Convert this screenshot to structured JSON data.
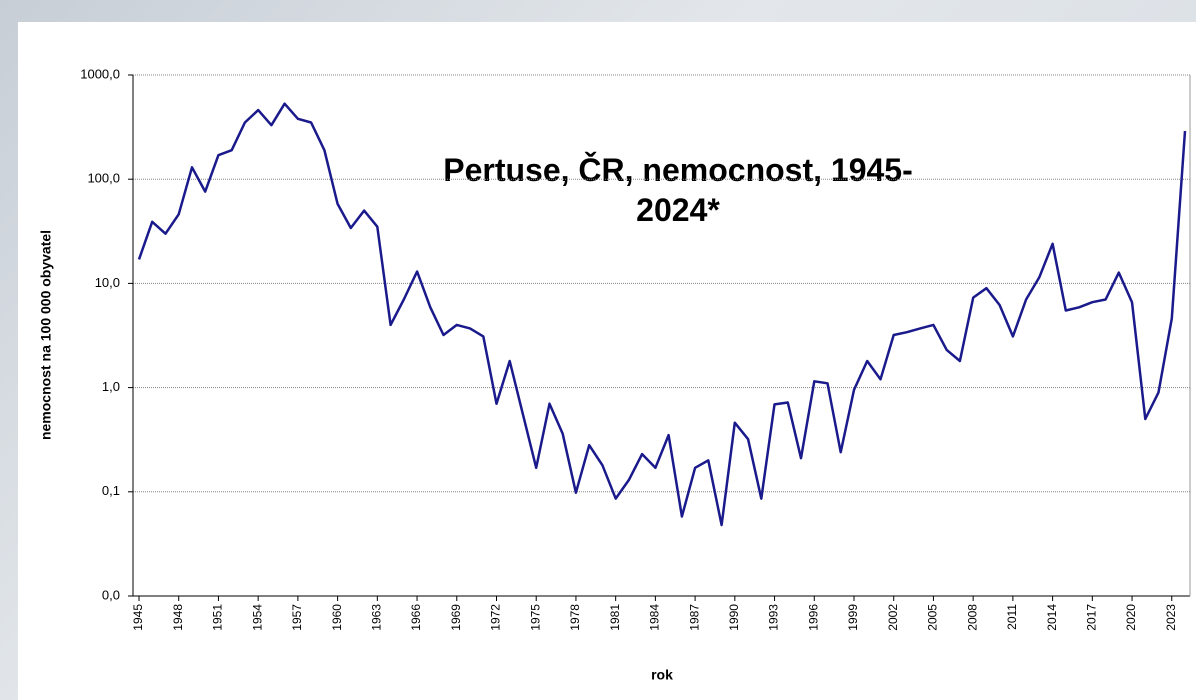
{
  "chart_data": {
    "type": "line",
    "title": "Pertuse, ČR, nemocnost, 1945-2024*",
    "xlabel": "rok",
    "ylabel": "nemocnost na 100 000 obyvatel",
    "yscale": "log",
    "grid": true,
    "xlim": [
      1945,
      2024
    ],
    "xticks": [
      1945,
      1948,
      1951,
      1954,
      1957,
      1960,
      1963,
      1966,
      1969,
      1972,
      1975,
      1978,
      1981,
      1984,
      1987,
      1990,
      1993,
      1996,
      1999,
      2002,
      2005,
      2008,
      2011,
      2014,
      2017,
      2020,
      2023
    ],
    "ylim": [
      0.01,
      1000
    ],
    "yticks": [
      {
        "value": 0.01,
        "label": "0,0"
      },
      {
        "value": 0.1,
        "label": "0,1"
      },
      {
        "value": 1,
        "label": "1,0"
      },
      {
        "value": 10,
        "label": "10,0"
      },
      {
        "value": 100,
        "label": "100,0"
      },
      {
        "value": 1000,
        "label": "1000,0"
      }
    ],
    "x": [
      1945,
      1946,
      1947,
      1948,
      1949,
      1950,
      1951,
      1952,
      1953,
      1954,
      1955,
      1956,
      1957,
      1958,
      1959,
      1960,
      1961,
      1962,
      1963,
      1964,
      1965,
      1966,
      1967,
      1968,
      1969,
      1970,
      1971,
      1972,
      1973,
      1974,
      1975,
      1976,
      1977,
      1978,
      1979,
      1980,
      1981,
      1982,
      1983,
      1984,
      1985,
      1986,
      1987,
      1988,
      1989,
      1990,
      1991,
      1992,
      1993,
      1994,
      1995,
      1996,
      1997,
      1998,
      1999,
      2000,
      2001,
      2002,
      2003,
      2004,
      2005,
      2006,
      2007,
      2008,
      2009,
      2010,
      2011,
      2012,
      2013,
      2014,
      2015,
      2016,
      2017,
      2018,
      2019,
      2020,
      2021,
      2022,
      2023,
      2024
    ],
    "series": [
      {
        "color": "#1a1a8c",
        "values": [
          17,
          39,
          30,
          46,
          130,
          76,
          170,
          190,
          350,
          460,
          330,
          530,
          380,
          350,
          190,
          58,
          34,
          50,
          35,
          4.0,
          7,
          13,
          5.9,
          3.2,
          4.0,
          3.7,
          3.1,
          0.7,
          1.8,
          0.55,
          0.17,
          0.7,
          0.36,
          0.098,
          0.28,
          0.18,
          0.086,
          0.13,
          0.23,
          0.17,
          0.35,
          0.058,
          0.17,
          0.2,
          0.048,
          0.46,
          0.32,
          0.086,
          0.69,
          0.72,
          0.21,
          1.15,
          1.1,
          0.24,
          0.95,
          1.8,
          1.2,
          3.2,
          3.4,
          3.7,
          4.0,
          2.3,
          1.8,
          7.3,
          9.0,
          6.2,
          3.1,
          7.0,
          11.5,
          24,
          5.5,
          5.9,
          6.6,
          7.0,
          12.7,
          6.6,
          0.5,
          0.9,
          4.6,
          290
        ]
      }
    ]
  }
}
